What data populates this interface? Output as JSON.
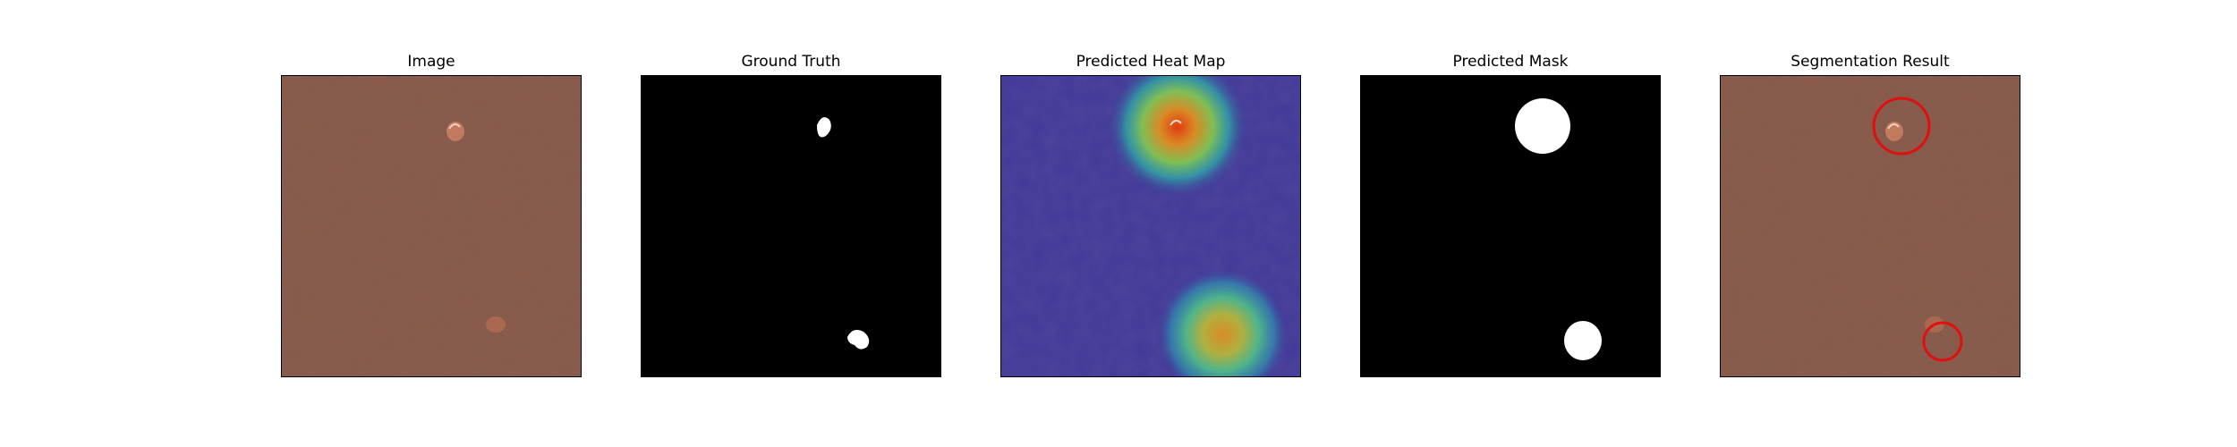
{
  "figure": {
    "panels": [
      {
        "title": "Image",
        "kind": "leather"
      },
      {
        "title": "Ground Truth",
        "kind": "mask"
      },
      {
        "title": "Predicted Heat Map",
        "kind": "heatmap"
      },
      {
        "title": "Predicted Mask",
        "kind": "mask"
      },
      {
        "title": "Segmentation Result",
        "kind": "leather"
      }
    ]
  },
  "colors": {
    "leather": "#8a5a4a",
    "mask_bg": "#000000",
    "mask_fg": "#ffffff",
    "heat_bg": "#3d3596",
    "outline": "#e01010"
  }
}
